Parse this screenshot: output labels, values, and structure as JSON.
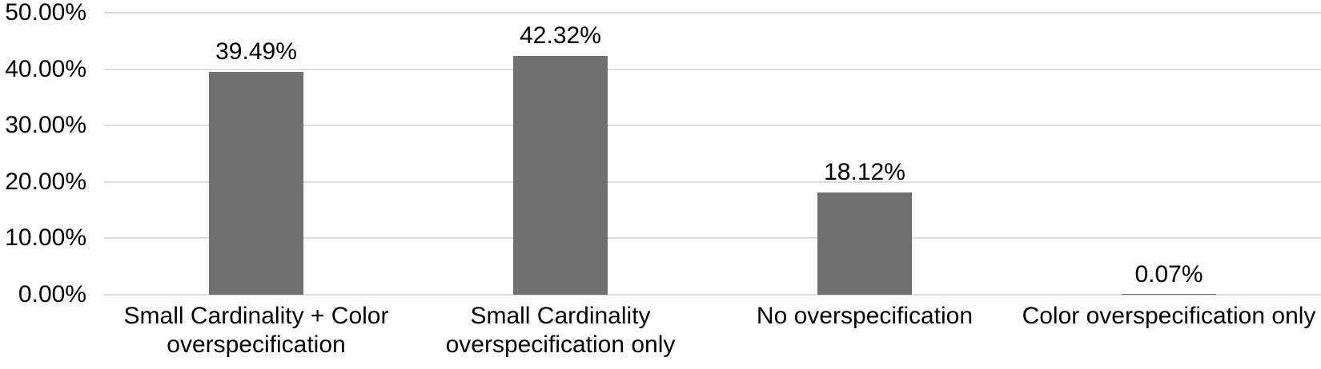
{
  "chart_data": {
    "type": "bar",
    "title": "",
    "xlabel": "",
    "ylabel": "",
    "categories": [
      "Small Cardinality + Color overspecification",
      "Small Cardinality overspecification only",
      "No overspecification",
      "Color overspecification only"
    ],
    "values": [
      39.49,
      42.32,
      18.12,
      0.07
    ],
    "data_labels": [
      "39.49%",
      "42.32%",
      "18.12%",
      "0.07%"
    ],
    "y_ticks": [
      {
        "value": 0,
        "label": "0.00%"
      },
      {
        "value": 10,
        "label": "10.00%"
      },
      {
        "value": 20,
        "label": "20.00%"
      },
      {
        "value": 30,
        "label": "30.00%"
      },
      {
        "value": 40,
        "label": "40.00%"
      },
      {
        "value": 50,
        "label": "50.00%"
      }
    ],
    "ylim": [
      0,
      50
    ],
    "grid": true,
    "legend": false,
    "bar_color": "#6f6f6f",
    "gridline_color": "#dcdcdc",
    "text_color": "#000000",
    "background_color": "#ffffff"
  }
}
